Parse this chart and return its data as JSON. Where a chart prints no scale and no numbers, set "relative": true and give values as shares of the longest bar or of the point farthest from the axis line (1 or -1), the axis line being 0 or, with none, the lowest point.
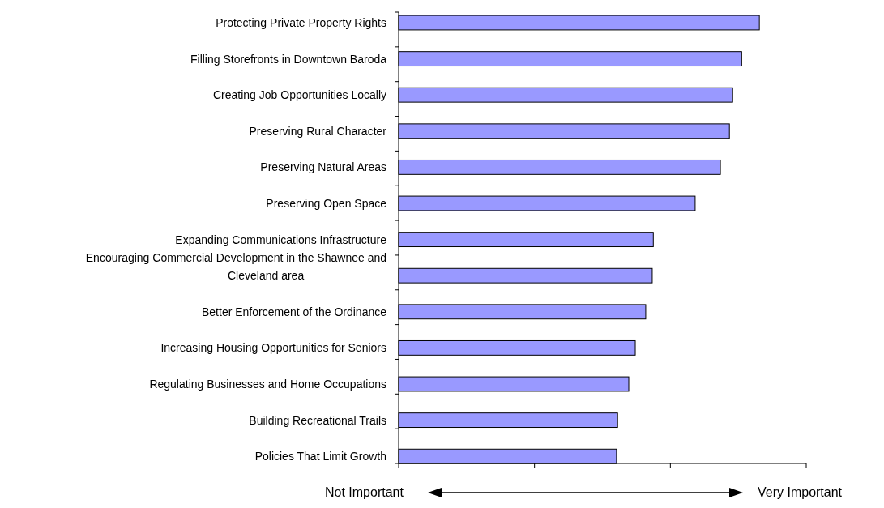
{
  "chart_data": {
    "type": "bar",
    "orientation": "horizontal",
    "relative": true,
    "color": "#9999ff",
    "categories": [
      "Protecting Private Property Rights",
      "Filling Storefronts in Downtown Baroda",
      "Creating Job Opportunities Locally",
      "Preserving Rural Character",
      "Preserving Natural Areas",
      "Preserving Open Space",
      "Expanding Communications Infrastructure",
      "Encouraging Commercial Development in the Shawnee and Cleveland area",
      "Better Enforcement of the Ordinance",
      "Increasing Housing Opportunities for Seniors",
      "Regulating Businesses and Home Occupations",
      "Building Recreational Trails",
      "Policies That Limit Growth"
    ],
    "values": [
      1,
      0.951,
      0.926,
      0.917,
      0.892,
      0.822,
      0.706,
      0.703,
      0.685,
      0.656,
      0.638,
      0.607,
      0.604
    ],
    "annotations": [
      "Not Important",
      "Very Important"
    ]
  }
}
